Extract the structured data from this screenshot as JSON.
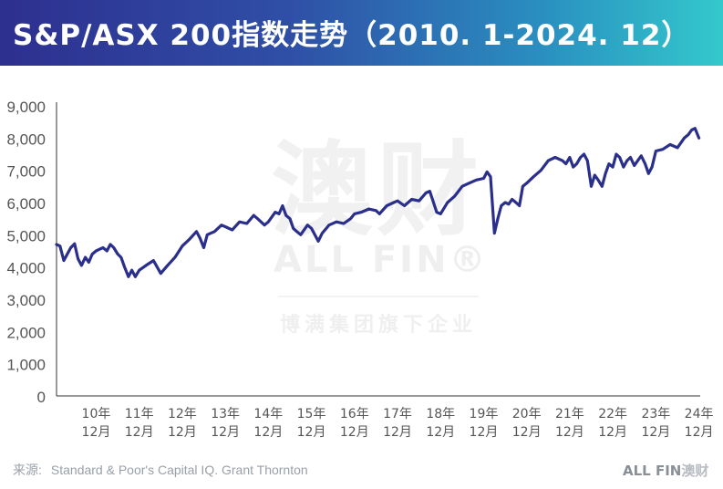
{
  "title": "S&P/ASX 200指数走势（2010. 1-2024. 12）",
  "source_label": "来源:",
  "source_text": "Standard & Poor's Capital IQ. Grant Thornton",
  "brand_logo": {
    "part1": "ALL FIN",
    "part2": "澳财"
  },
  "watermark": {
    "big": "澳财",
    "mid": "ALL FIN®",
    "small": "博满集团旗下企业"
  },
  "colors": {
    "line": "#2b2f8c",
    "axis": "#333333",
    "text": "#555555"
  },
  "chart_data": {
    "type": "line",
    "title": "S&P/ASX 200指数走势（2010. 1-2024. 12）",
    "xlabel": "",
    "ylabel": "",
    "ylim": [
      0,
      9000
    ],
    "xlim": [
      2010.0,
      2024.95
    ],
    "y_ticks": [
      0,
      1000,
      2000,
      3000,
      4000,
      5000,
      6000,
      7000,
      8000,
      9000
    ],
    "y_tick_labels": [
      "0",
      "1,000",
      "2,000",
      "3,000",
      "4,000",
      "5,000",
      "6,000",
      "7,000",
      "8,000",
      "9,000"
    ],
    "x_ticks": [
      {
        "year": "10年",
        "month": "12月",
        "x": 2010.92
      },
      {
        "year": "11年",
        "month": "12月",
        "x": 2011.92
      },
      {
        "year": "12年",
        "month": "12月",
        "x": 2012.92
      },
      {
        "year": "13年",
        "month": "12月",
        "x": 2013.92
      },
      {
        "year": "14年",
        "month": "12月",
        "x": 2014.92
      },
      {
        "year": "15年",
        "month": "12月",
        "x": 2015.92
      },
      {
        "year": "16年",
        "month": "12月",
        "x": 2016.92
      },
      {
        "year": "17年",
        "month": "12月",
        "x": 2017.92
      },
      {
        "year": "18年",
        "month": "12月",
        "x": 2018.92
      },
      {
        "year": "19年",
        "month": "12月",
        "x": 2019.92
      },
      {
        "year": "20年",
        "month": "12月",
        "x": 2020.92
      },
      {
        "year": "21年",
        "month": "12月",
        "x": 2021.92
      },
      {
        "year": "22年",
        "month": "12月",
        "x": 2022.92
      },
      {
        "year": "23年",
        "month": "12月",
        "x": 2023.92
      },
      {
        "year": "24年",
        "month": "12月",
        "x": 2024.92
      }
    ],
    "grid": false,
    "series": [
      {
        "name": "",
        "x": [
          2010.0,
          2010.08,
          2010.17,
          2010.25,
          2010.33,
          2010.42,
          2010.5,
          2010.58,
          2010.67,
          2010.75,
          2010.83,
          2010.92,
          2011.0,
          2011.08,
          2011.17,
          2011.25,
          2011.33,
          2011.42,
          2011.5,
          2011.58,
          2011.67,
          2011.75,
          2011.83,
          2011.92,
          2012.08,
          2012.25,
          2012.42,
          2012.58,
          2012.75,
          2012.92,
          2013.08,
          2013.25,
          2013.33,
          2013.42,
          2013.5,
          2013.67,
          2013.83,
          2013.92,
          2014.08,
          2014.25,
          2014.42,
          2014.58,
          2014.67,
          2014.83,
          2014.92,
          2015.08,
          2015.17,
          2015.25,
          2015.33,
          2015.42,
          2015.5,
          2015.58,
          2015.67,
          2015.83,
          2015.92,
          2016.0,
          2016.08,
          2016.17,
          2016.33,
          2016.5,
          2016.67,
          2016.83,
          2016.92,
          2017.08,
          2017.25,
          2017.42,
          2017.5,
          2017.67,
          2017.83,
          2017.92,
          2018.08,
          2018.25,
          2018.42,
          2018.58,
          2018.67,
          2018.83,
          2018.92,
          2019.08,
          2019.25,
          2019.42,
          2019.58,
          2019.75,
          2019.92,
          2020.0,
          2020.08,
          2020.17,
          2020.25,
          2020.33,
          2020.42,
          2020.5,
          2020.58,
          2020.67,
          2020.75,
          2020.83,
          2020.92,
          2021.08,
          2021.25,
          2021.42,
          2021.58,
          2021.75,
          2021.83,
          2021.92,
          2022.0,
          2022.08,
          2022.17,
          2022.25,
          2022.33,
          2022.42,
          2022.5,
          2022.58,
          2022.67,
          2022.75,
          2022.83,
          2022.92,
          2023.0,
          2023.08,
          2023.17,
          2023.25,
          2023.33,
          2023.42,
          2023.5,
          2023.58,
          2023.67,
          2023.75,
          2023.83,
          2023.92,
          2024.08,
          2024.25,
          2024.42,
          2024.58,
          2024.67,
          2024.75,
          2024.83,
          2024.92
        ],
        "y": [
          4700,
          4650,
          4200,
          4400,
          4600,
          4720,
          4250,
          4050,
          4300,
          4150,
          4400,
          4500,
          4550,
          4600,
          4500,
          4700,
          4600,
          4400,
          4300,
          4000,
          3700,
          3900,
          3700,
          3900,
          4050,
          4200,
          3800,
          4050,
          4300,
          4650,
          4850,
          5100,
          4900,
          4600,
          5000,
          5100,
          5300,
          5250,
          5150,
          5400,
          5350,
          5600,
          5500,
          5300,
          5400,
          5700,
          5650,
          5900,
          5600,
          5500,
          5200,
          5100,
          5000,
          5300,
          5200,
          5000,
          4800,
          5050,
          5300,
          5400,
          5350,
          5500,
          5650,
          5700,
          5800,
          5750,
          5650,
          5900,
          6000,
          6050,
          5900,
          6100,
          6050,
          6300,
          6350,
          5700,
          5650,
          6000,
          6200,
          6500,
          6600,
          6700,
          6750,
          6950,
          6800,
          5050,
          5500,
          5900,
          6000,
          5950,
          6100,
          6000,
          5900,
          6500,
          6600,
          6800,
          7000,
          7300,
          7400,
          7300,
          7200,
          7400,
          7100,
          7200,
          7400,
          7500,
          7300,
          6500,
          6850,
          6700,
          6500,
          6900,
          7200,
          7100,
          7500,
          7400,
          7100,
          7300,
          7400,
          7150,
          7300,
          7450,
          7200,
          6900,
          7100,
          7600,
          7650,
          7800,
          7700,
          8000,
          8100,
          8250,
          8300,
          8000
        ]
      }
    ]
  }
}
